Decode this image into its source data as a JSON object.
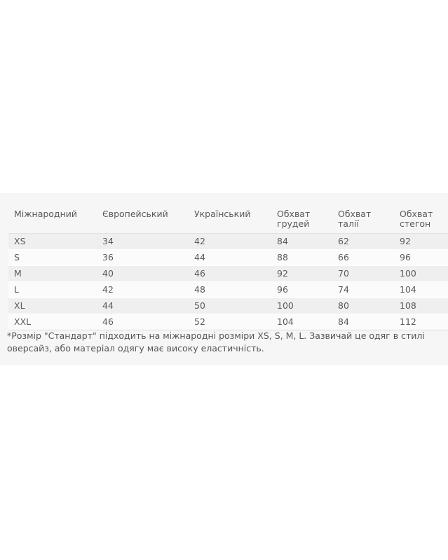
{
  "table": {
    "headers": [
      [
        "Міжнародний"
      ],
      [
        "Європейський"
      ],
      [
        "Український"
      ],
      [
        "Обхват",
        "грудей"
      ],
      [
        "Обхват",
        "талії"
      ],
      [
        "Обхват",
        "стегон"
      ]
    ],
    "rows": [
      [
        "XS",
        "34",
        "42",
        "84",
        "62",
        "92"
      ],
      [
        "S",
        "36",
        "44",
        "88",
        "66",
        "96"
      ],
      [
        "M",
        "40",
        "46",
        "92",
        "70",
        "100"
      ],
      [
        "L",
        "42",
        "48",
        "96",
        "74",
        "104"
      ],
      [
        "XL",
        "44",
        "50",
        "100",
        "80",
        "108"
      ],
      [
        "XXL",
        "46",
        "52",
        "104",
        "84",
        "112"
      ]
    ]
  },
  "note": "*Розмір \"Стандарт\" підходить на міжнародні розміри XS, S, M, L. Зазвичай це одяг в стилі оверсайз, або матеріал одягу має високу еластичність."
}
